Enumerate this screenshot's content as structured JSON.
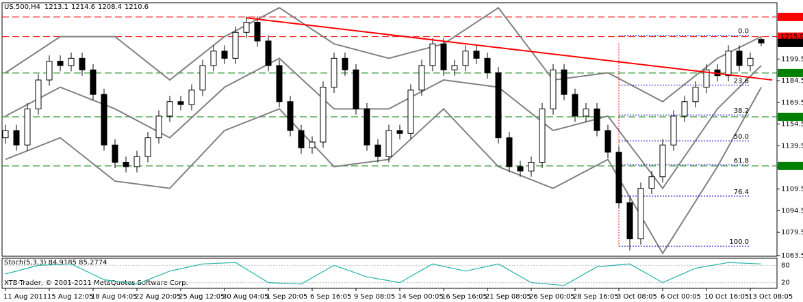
{
  "chart_data": [
    {
      "type": "candlestick",
      "title": "US.500,H4",
      "categories": [
        "11 Aug 2011",
        null,
        null,
        null,
        "15 Aug 12:05",
        null,
        null,
        null,
        "18 Aug 04:05",
        null,
        null,
        null,
        "22 Aug 20:05",
        null,
        null,
        null,
        "25 Aug 12:05",
        null,
        null,
        null,
        "30 Aug 04:05",
        null,
        null,
        null,
        "1 Sep 20:05",
        null,
        null,
        null,
        "6 Sep 16:05",
        null,
        null,
        null,
        "9 Sep 08:05",
        null,
        null,
        null,
        "14 Sep 00:05",
        null,
        null,
        null,
        "16 Sep 16:05",
        null,
        null,
        null,
        "21 Sep 08:05",
        null,
        null,
        null,
        "26 Sep 00:05",
        null,
        null,
        null,
        "28 Sep 16:05",
        null,
        null,
        null,
        "3 Oct 08:05",
        null,
        null,
        null,
        "6 Oct 00:05",
        null,
        null,
        null,
        "10 Oct 16:05",
        null,
        null,
        null,
        "13 Oct 08:05",
        null
      ],
      "open": [
        1145,
        1150,
        1140,
        1165,
        1185,
        1198,
        1195,
        1200,
        1192,
        1175,
        1140,
        1128,
        1125,
        1132,
        1145,
        1160,
        1170,
        1168,
        1178,
        1195,
        1205,
        1200,
        1218,
        1225,
        1212,
        1195,
        1170,
        1150,
        1138,
        1142,
        1180,
        1200,
        1192,
        1165,
        1140,
        1132,
        1150,
        1148,
        1178,
        1195,
        1210,
        1192,
        1195,
        1205,
        1200,
        1190,
        1145,
        1125,
        1122,
        1128,
        1165,
        1192,
        1175,
        1160,
        1165,
        1150,
        1135,
        1100,
        1075,
        1110,
        1118,
        1140,
        1160,
        1170,
        1180,
        1192,
        1188,
        1205,
        1195,
        1213.1
      ],
      "high": [
        1154,
        1154,
        1169,
        1189,
        1202,
        1202,
        1204,
        1204,
        1196,
        1179,
        1144,
        1132,
        1136,
        1149,
        1164,
        1174,
        1174,
        1182,
        1199,
        1209,
        1209,
        1222,
        1229,
        1229,
        1216,
        1199,
        1174,
        1154,
        1146,
        1184,
        1204,
        1204,
        1196,
        1169,
        1144,
        1154,
        1154,
        1182,
        1199,
        1214,
        1214,
        1199,
        1209,
        1209,
        1204,
        1194,
        1149,
        1129,
        1132,
        1169,
        1196,
        1196,
        1179,
        1169,
        1169,
        1154,
        1139,
        1104,
        1114,
        1122,
        1144,
        1164,
        1174,
        1184,
        1196,
        1196,
        1209,
        1209,
        1204,
        1214.6
      ],
      "low": [
        1141,
        1136,
        1136,
        1161,
        1181,
        1191,
        1191,
        1188,
        1171,
        1136,
        1124,
        1121,
        1121,
        1128,
        1141,
        1156,
        1164,
        1164,
        1174,
        1191,
        1196,
        1196,
        1214,
        1208,
        1191,
        1166,
        1146,
        1134,
        1134,
        1138,
        1176,
        1188,
        1161,
        1136,
        1128,
        1128,
        1144,
        1144,
        1174,
        1191,
        1188,
        1188,
        1191,
        1196,
        1186,
        1141,
        1121,
        1118,
        1118,
        1124,
        1161,
        1171,
        1156,
        1156,
        1146,
        1131,
        1096,
        1067,
        1071,
        1106,
        1114,
        1136,
        1156,
        1166,
        1176,
        1184,
        1184,
        1191,
        1191,
        1208.4
      ],
      "close": [
        1150,
        1140,
        1165,
        1185,
        1198,
        1195,
        1200,
        1192,
        1175,
        1140,
        1128,
        1125,
        1132,
        1145,
        1160,
        1170,
        1168,
        1178,
        1195,
        1205,
        1200,
        1218,
        1225,
        1212,
        1195,
        1170,
        1150,
        1138,
        1142,
        1180,
        1200,
        1192,
        1165,
        1140,
        1132,
        1150,
        1148,
        1178,
        1195,
        1210,
        1192,
        1195,
        1205,
        1200,
        1190,
        1145,
        1125,
        1122,
        1128,
        1165,
        1192,
        1175,
        1160,
        1165,
        1150,
        1135,
        1100,
        1075,
        1110,
        1118,
        1140,
        1160,
        1170,
        1180,
        1192,
        1188,
        1205,
        1195,
        1200,
        1210.6
      ],
      "up_color": "#ffffff",
      "down_color": "#000000",
      "ylim": [
        1063,
        1238
      ],
      "yticks": [
        1199.5,
        1184.5,
        1169.5,
        1154.5,
        1139.5,
        1124.5,
        1109.5,
        1094.5,
        1079.5,
        1063.5
      ],
      "grid": false,
      "bands": [
        {
          "color": "#808080",
          "x": [
            0,
            5,
            10,
            15,
            20,
            25,
            30,
            35,
            40,
            45,
            50,
            55,
            60,
            65,
            69
          ],
          "values": [
            1160,
            1180,
            1165,
            1145,
            1180,
            1200,
            1165,
            1165,
            1185,
            1180,
            1150,
            1160,
            1110,
            1165,
            1195
          ]
        },
        {
          "color": "#808080",
          "x": [
            0,
            5,
            10,
            15,
            20,
            25,
            30,
            35,
            40,
            45,
            50,
            55,
            60,
            65,
            69
          ],
          "values": [
            1190,
            1215,
            1215,
            1185,
            1215,
            1235,
            1210,
            1200,
            1210,
            1235,
            1185,
            1190,
            1170,
            1200,
            1215
          ]
        },
        {
          "color": "#808080",
          "x": [
            0,
            5,
            10,
            15,
            20,
            25,
            30,
            35,
            40,
            45,
            50,
            55,
            60,
            65,
            69
          ],
          "values": [
            1130,
            1145,
            1115,
            1110,
            1150,
            1165,
            1125,
            1130,
            1165,
            1125,
            1110,
            1130,
            1065,
            1125,
            1180
          ]
        }
      ],
      "trendline": {
        "color": "#ff0000",
        "x": [
          22,
          70
        ],
        "values": [
          1228,
          1185
        ]
      },
      "levels": [
        {
          "value": 1228.6,
          "color": "#ff0000"
        },
        {
          "value": 1215,
          "label": "1215.0",
          "color": "#ff0000"
        },
        {
          "value": 1189.8,
          "color": "#008000"
        },
        {
          "value": 1159.5,
          "color": "#008000"
        },
        {
          "value": 1125.5,
          "color": "#008000"
        }
      ],
      "fibo": {
        "color": "#0000cd",
        "x": [
          56,
          68
        ],
        "levels": [
          {
            "value": 1216,
            "label": "0.0"
          },
          {
            "value": 1181.5,
            "label": "23.6"
          },
          {
            "value": 1160.8,
            "label": "38.2"
          },
          {
            "value": 1142.9,
            "label": "50.0"
          },
          {
            "value": 1126.3,
            "label": "61.8"
          },
          {
            "value": 1104.6,
            "label": "76.4"
          },
          {
            "value": 1070,
            "label": "100.0"
          }
        ]
      },
      "watermark": "XTB-Trader, © 2001-2011 MetaQuotes Software Corp."
    },
    {
      "type": "line",
      "title": "Stoch(5,3,3) 84.9185 85.2774",
      "x": [
        0,
        3,
        6,
        9,
        12,
        15,
        18,
        21,
        24,
        27,
        30,
        33,
        36,
        39,
        42,
        45,
        48,
        51,
        54,
        57,
        60,
        63,
        66,
        69
      ],
      "series": [
        {
          "color": "#20b2aa",
          "values": [
            50,
            80,
            85,
            30,
            15,
            60,
            85,
            90,
            20,
            15,
            80,
            40,
            20,
            85,
            60,
            85,
            20,
            10,
            75,
            85,
            20,
            70,
            90,
            85
          ]
        }
      ],
      "ylim": [
        0,
        100
      ],
      "yticks": [
        20,
        80
      ]
    }
  ]
}
